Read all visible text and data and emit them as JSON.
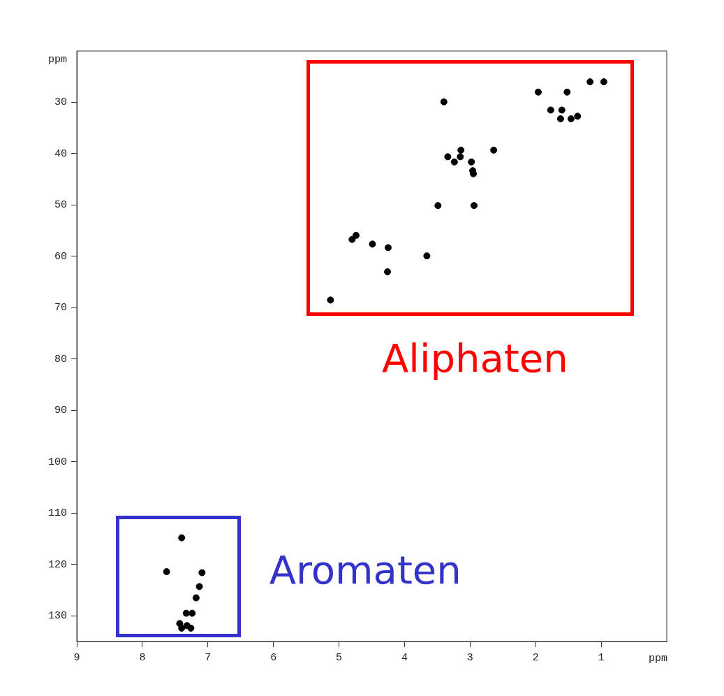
{
  "chart_data": {
    "type": "scatter",
    "xlabel": "ppm",
    "ylabel": "ppm",
    "xlim": [
      9,
      0
    ],
    "ylim": [
      135,
      20
    ],
    "xticks": [
      9,
      8,
      7,
      6,
      5,
      4,
      3,
      2,
      1
    ],
    "yticks": [
      30,
      40,
      50,
      60,
      70,
      80,
      90,
      100,
      110,
      120,
      130
    ],
    "grid": false,
    "legend": false,
    "marker": "circle",
    "annotations": [
      "Aliphaten",
      "Aromaten"
    ],
    "series": [
      {
        "color": "#000000",
        "x": [
          1.17,
          0.96,
          1.96,
          1.52,
          3.4,
          1.77,
          1.6,
          1.62,
          1.46,
          1.36,
          3.14,
          2.64,
          3.34,
          3.15,
          3.24,
          2.98,
          2.96,
          2.95,
          3.49,
          2.94,
          4.74,
          4.8,
          4.49,
          4.25,
          3.66,
          4.26,
          5.13,
          7.4,
          7.63,
          7.09,
          7.13,
          7.18,
          7.33,
          7.24,
          7.43,
          7.32,
          7.4,
          7.26
        ],
        "values": [
          26.0,
          26.0,
          28.0,
          28.0,
          29.9,
          31.5,
          31.5,
          33.2,
          33.2,
          32.7,
          39.3,
          39.3,
          40.6,
          40.6,
          41.6,
          41.6,
          43.3,
          43.9,
          50.1,
          50.1,
          55.9,
          56.7,
          57.6,
          58.3,
          59.9,
          63.0,
          68.5,
          114.8,
          121.4,
          121.6,
          124.3,
          126.5,
          129.5,
          129.5,
          131.5,
          131.9,
          132.4,
          132.4
        ]
      }
    ]
  }
}
